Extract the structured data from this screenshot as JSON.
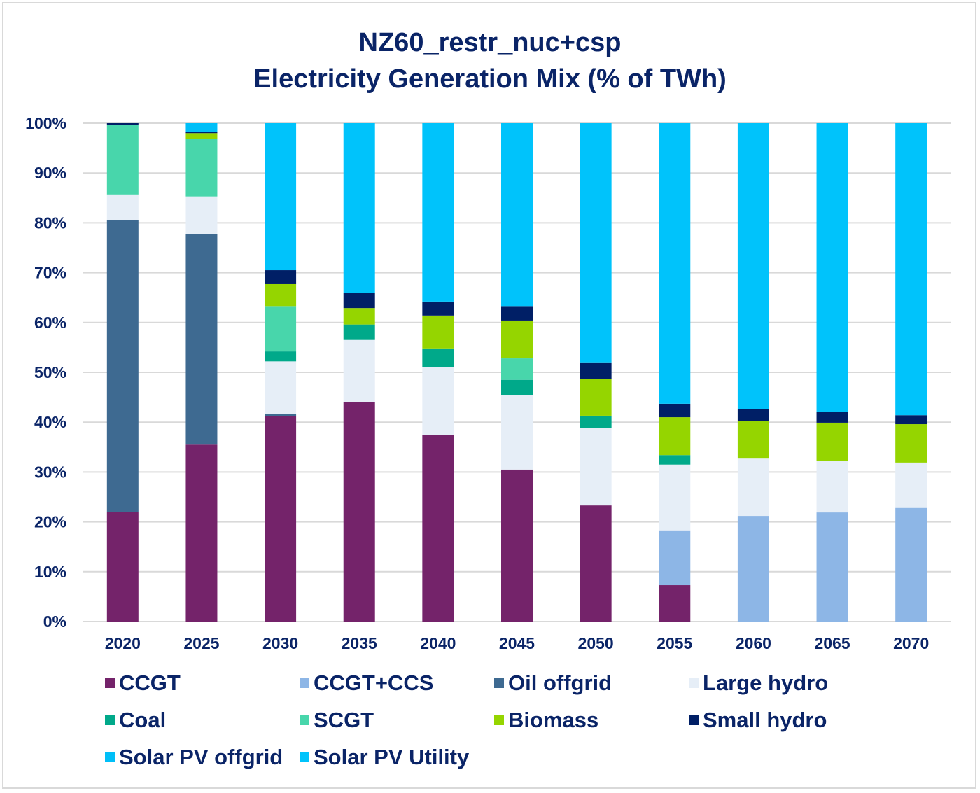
{
  "chart_data": {
    "type": "bar",
    "stacked": true,
    "title": "NZ60_restr_nuc+csp",
    "subtitle": "Electricity Generation Mix (% of TWh)",
    "xlabel": "",
    "ylabel": "",
    "ylim": [
      0,
      100
    ],
    "yticks": [
      "0%",
      "10%",
      "20%",
      "30%",
      "40%",
      "50%",
      "60%",
      "70%",
      "80%",
      "90%",
      "100%"
    ],
    "grid": true,
    "legend_position": "bottom",
    "categories": [
      "2020",
      "2025",
      "2030",
      "2035",
      "2040",
      "2045",
      "2050",
      "2055",
      "2060",
      "2065",
      "2070"
    ],
    "series": [
      {
        "name": "CCGT",
        "color": "#74236a",
        "values": [
          22.0,
          35.5,
          41.2,
          44.1,
          37.4,
          30.5,
          23.3,
          7.3,
          0,
          0,
          0
        ]
      },
      {
        "name": "CCGT+CCS",
        "color": "#8db6e6",
        "values": [
          0,
          0,
          0,
          0,
          0,
          0,
          0,
          11.0,
          21.2,
          21.9,
          22.8
        ]
      },
      {
        "name": "Oil offgrid",
        "color": "#3e6a91",
        "values": [
          58.6,
          42.2,
          0.5,
          0,
          0,
          0,
          0,
          0,
          0,
          0,
          0
        ]
      },
      {
        "name": "Large hydro",
        "color": "#e6eef7",
        "values": [
          5.1,
          7.6,
          10.5,
          12.4,
          13.7,
          15.0,
          15.6,
          13.2,
          11.5,
          10.4,
          9.1
        ]
      },
      {
        "name": "Coal",
        "color": "#00a98a",
        "values": [
          0,
          0,
          2.0,
          3.1,
          3.7,
          3.0,
          2.4,
          1.9,
          0,
          0,
          0
        ]
      },
      {
        "name": "SCGT",
        "color": "#48d6ab",
        "values": [
          14.0,
          11.6,
          9.1,
          0,
          0,
          4.3,
          0,
          0,
          0,
          0,
          0
        ]
      },
      {
        "name": "Biomass",
        "color": "#95d500",
        "values": [
          0,
          1.1,
          4.4,
          3.3,
          6.6,
          7.6,
          7.4,
          7.6,
          7.6,
          7.6,
          7.7
        ]
      },
      {
        "name": "Small hydro",
        "color": "#001f66",
        "values": [
          0.3,
          0.3,
          2.8,
          3.0,
          2.8,
          2.9,
          3.3,
          2.7,
          2.3,
          2.1,
          1.8
        ]
      },
      {
        "name": "Solar PV offgrid",
        "color": "#00bff8",
        "values": [
          0,
          1.7,
          0,
          0,
          0,
          0,
          0,
          0,
          0,
          0,
          0
        ]
      },
      {
        "name": "Solar PV Utility",
        "color": "#00c3fb",
        "values": [
          0,
          0,
          29.5,
          34.1,
          35.8,
          36.7,
          48.0,
          56.3,
          57.4,
          58.0,
          58.6
        ]
      }
    ]
  }
}
